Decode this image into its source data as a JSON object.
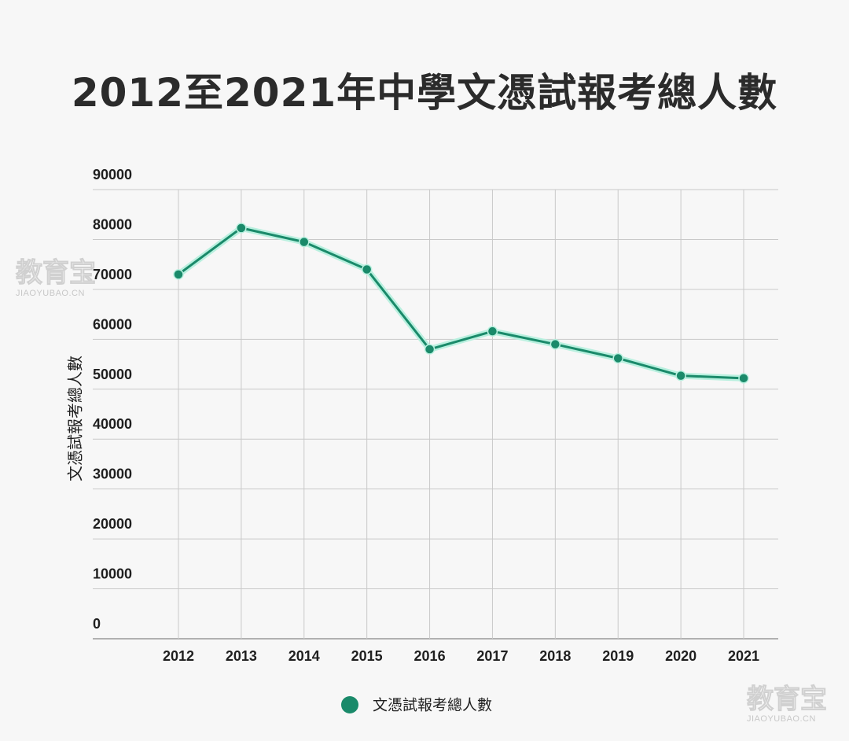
{
  "chart_data": {
    "type": "line",
    "title": "2012至2021年中學文憑試報考總人數",
    "ylabel": "文憑試報考總人數",
    "xlabel": "",
    "x": [
      "2012",
      "2013",
      "2014",
      "2015",
      "2016",
      "2017",
      "2018",
      "2019",
      "2020",
      "2021"
    ],
    "series": [
      {
        "name": "文憑試報考總人數",
        "values": [
          73000,
          82300,
          79500,
          74000,
          58000,
          61600,
          59000,
          56200,
          52700,
          52200
        ],
        "color": "#1a8a6a"
      }
    ],
    "ylim": [
      0,
      90000
    ],
    "yticks": [
      "0",
      "10000",
      "20000",
      "30000",
      "40000",
      "50000",
      "60000",
      "70000",
      "80000",
      "90000"
    ],
    "grid": true,
    "legend": "bottom-center"
  },
  "watermarks": [
    {
      "text": "教育宝",
      "sub": "JIAOYUBAO.CN"
    },
    {
      "text": "教育宝",
      "sub": "JIAOYUBAO.CN"
    }
  ]
}
